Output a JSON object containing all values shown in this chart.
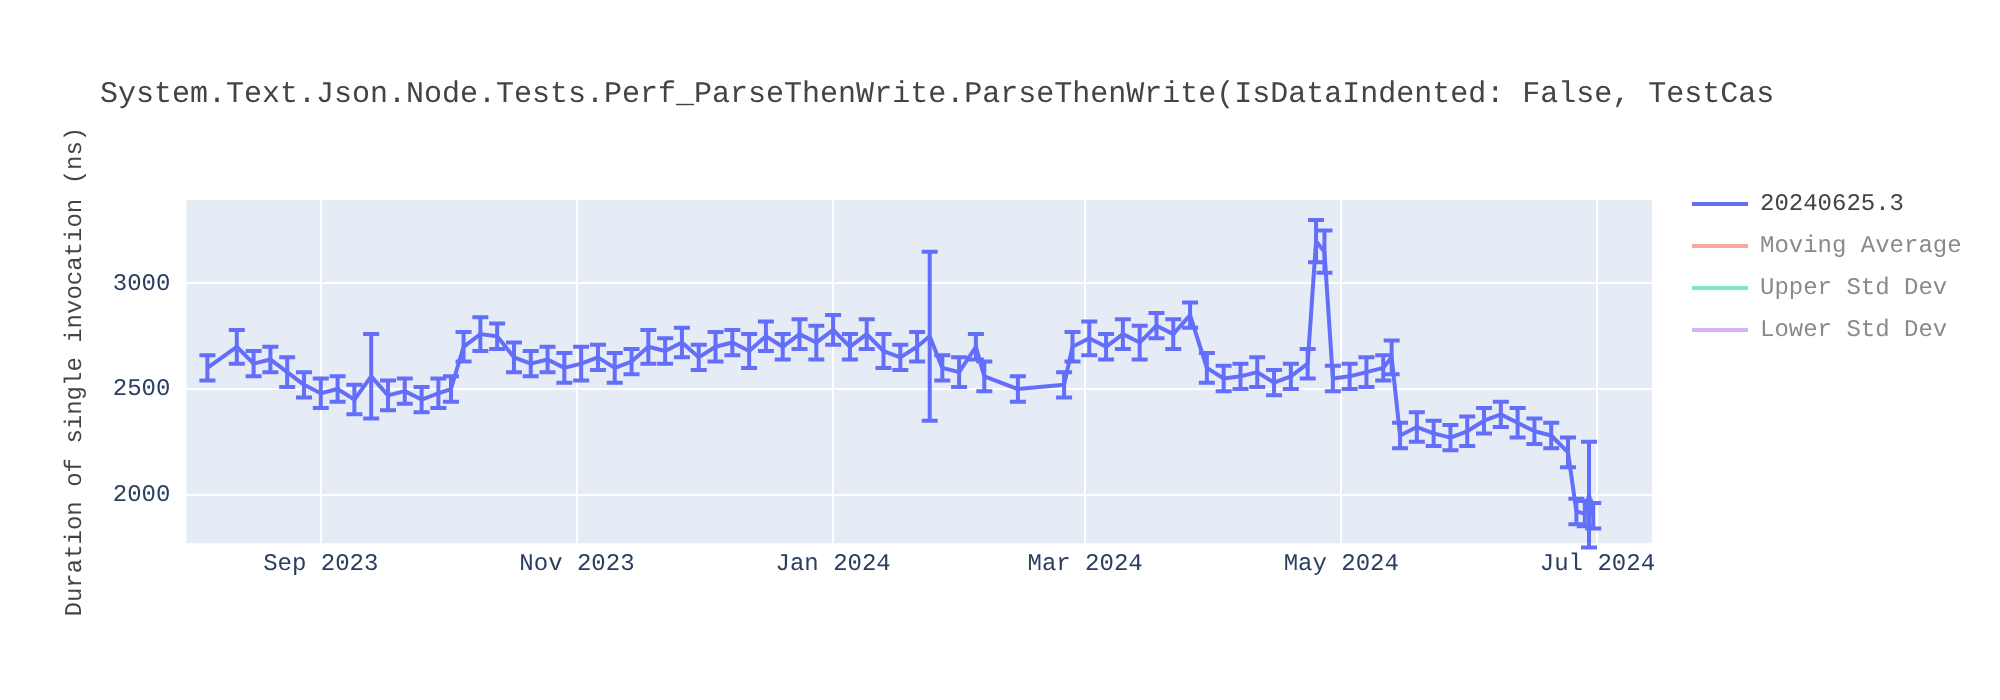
{
  "chart_data": {
    "type": "line",
    "title": "System.Text.Json.Node.Tests.Perf_ParseThenWrite.ParseThenWrite(IsDataIndented: False, TestCas",
    "ylabel": "Duration of single invocation (ns)",
    "xlim": [
      "2023-07-31",
      "2024-07-14"
    ],
    "xticks": [
      {
        "value": "2023-09-01",
        "label": "Sep 2023"
      },
      {
        "value": "2023-11-01",
        "label": "Nov 2023"
      },
      {
        "value": "2024-01-01",
        "label": "Jan 2024"
      },
      {
        "value": "2024-03-01",
        "label": "Mar 2024"
      },
      {
        "value": "2024-05-01",
        "label": "May 2024"
      },
      {
        "value": "2024-07-01",
        "label": "Jul 2024"
      }
    ],
    "ylim": [
      1770,
      3395
    ],
    "yticks": [
      2000,
      2500,
      3000
    ],
    "grid": true,
    "legend": "top right",
    "marker": "none",
    "line_style": "solid",
    "series": [
      {
        "name": "20240625.3",
        "color": "#636efa",
        "x": [
          "2023-08-05",
          "2023-08-12",
          "2023-08-16",
          "2023-08-20",
          "2023-08-24",
          "2023-08-28",
          "2023-09-01",
          "2023-09-05",
          "2023-09-09",
          "2023-09-13",
          "2023-09-17",
          "2023-09-21",
          "2023-09-25",
          "2023-09-29",
          "2023-10-02",
          "2023-10-05",
          "2023-10-09",
          "2023-10-13",
          "2023-10-17",
          "2023-10-21",
          "2023-10-25",
          "2023-10-29",
          "2023-11-02",
          "2023-11-06",
          "2023-11-10",
          "2023-11-14",
          "2023-11-18",
          "2023-11-22",
          "2023-11-26",
          "2023-11-30",
          "2023-12-04",
          "2023-12-08",
          "2023-12-12",
          "2023-12-16",
          "2023-12-20",
          "2023-12-24",
          "2023-12-28",
          "2024-01-01",
          "2024-01-05",
          "2024-01-09",
          "2024-01-13",
          "2024-01-17",
          "2024-01-21",
          "2024-01-24",
          "2024-01-27",
          "2024-01-31",
          "2024-02-04",
          "2024-02-06",
          "2024-02-14",
          "2024-02-25",
          "2024-02-27",
          "2024-03-02",
          "2024-03-06",
          "2024-03-10",
          "2024-03-14",
          "2024-03-18",
          "2024-03-22",
          "2024-03-26",
          "2024-03-30",
          "2024-04-03",
          "2024-04-07",
          "2024-04-11",
          "2024-04-15",
          "2024-04-19",
          "2024-04-23",
          "2024-04-25",
          "2024-04-27",
          "2024-04-29",
          "2024-05-03",
          "2024-05-07",
          "2024-05-11",
          "2024-05-13",
          "2024-05-15",
          "2024-05-19",
          "2024-05-23",
          "2024-05-27",
          "2024-05-31",
          "2024-06-04",
          "2024-06-08",
          "2024-06-12",
          "2024-06-16",
          "2024-06-20",
          "2024-06-24",
          "2024-06-26",
          "2024-06-28",
          "2024-06-29",
          "2024-06-30"
        ],
        "values": [
          2600,
          2700,
          2620,
          2640,
          2580,
          2520,
          2480,
          2500,
          2450,
          2560,
          2470,
          2490,
          2450,
          2480,
          2500,
          2700,
          2760,
          2750,
          2650,
          2620,
          2640,
          2600,
          2620,
          2650,
          2600,
          2630,
          2700,
          2680,
          2720,
          2650,
          2700,
          2720,
          2680,
          2750,
          2700,
          2760,
          2720,
          2780,
          2700,
          2760,
          2680,
          2650,
          2700,
          2750,
          2600,
          2580,
          2700,
          2560,
          2500,
          2520,
          2700,
          2740,
          2700,
          2760,
          2720,
          2800,
          2760,
          2850,
          2600,
          2550,
          2560,
          2580,
          2530,
          2560,
          2620,
          3200,
          3150,
          2550,
          2560,
          2580,
          2600,
          2650,
          2280,
          2320,
          2290,
          2270,
          2300,
          2350,
          2380,
          2340,
          2300,
          2280,
          2200,
          1920,
          1910,
          2000,
          1900
        ],
        "errors": [
          60,
          80,
          60,
          60,
          70,
          60,
          70,
          60,
          70,
          200,
          70,
          60,
          60,
          70,
          60,
          70,
          80,
          60,
          70,
          60,
          60,
          70,
          80,
          60,
          70,
          60,
          80,
          60,
          70,
          60,
          70,
          60,
          80,
          70,
          60,
          70,
          80,
          70,
          60,
          70,
          80,
          60,
          70,
          400,
          60,
          70,
          60,
          70,
          60,
          60,
          70,
          80,
          60,
          70,
          80,
          60,
          70,
          60,
          70,
          60,
          60,
          70,
          60,
          60,
          70,
          100,
          100,
          60,
          60,
          70,
          60,
          80,
          60,
          70,
          60,
          60,
          70,
          60,
          60,
          70,
          60,
          60,
          70,
          60,
          60,
          250,
          60
        ]
      },
      {
        "name": "Moving Average",
        "color": "#f5aa9d"
      },
      {
        "name": "Upper Std Dev",
        "color": "#80e5ca"
      },
      {
        "name": "Lower Std Dev",
        "color": "#d5b1fc"
      }
    ]
  }
}
